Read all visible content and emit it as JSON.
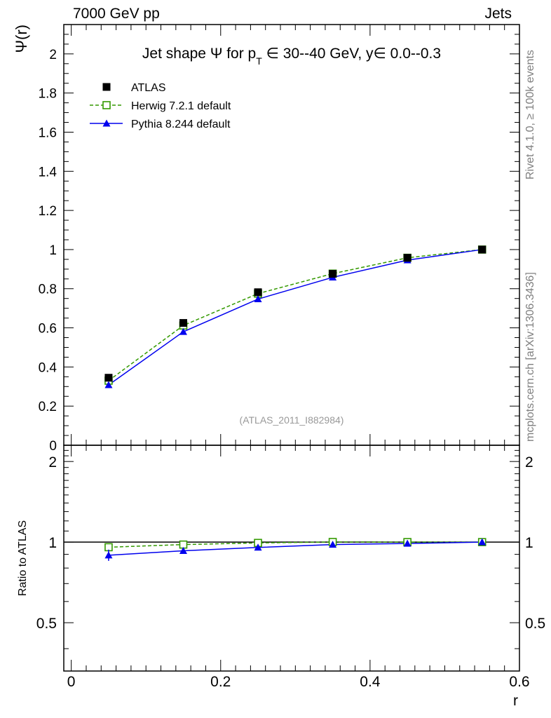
{
  "header": {
    "left_label": "7000 GeV pp",
    "right_label": "Jets"
  },
  "side_labels": {
    "rivet": "Rivet 4.1.0, ≥ 100k events",
    "mcplots": "mcplots.cern.ch [arXiv:1306.3436]"
  },
  "colors": {
    "atlas": "#000000",
    "herwig": "#339900",
    "pythia": "#0000ee",
    "watermark": "#999999"
  },
  "chart_data": [
    {
      "type": "line",
      "title_parts": {
        "prefix": "Jet shape ",
        "psi": "Ψ",
        "mid": " for p",
        "sub": "T",
        "suffix": " ∈ 30--40 GeV, y∈ 0.0--0.3"
      },
      "ylabel": "Ψ(r)",
      "xlim": [
        -0.01,
        0.6
      ],
      "ylim": [
        0,
        2.15
      ],
      "yticks": [
        "0",
        "0.2",
        "0.4",
        "0.6",
        "0.8",
        "1",
        "1.2",
        "1.4",
        "1.6",
        "1.8",
        "2"
      ],
      "watermark": "(ATLAS_2011_I882984)",
      "x": [
        0.05,
        0.15,
        0.25,
        0.35,
        0.45,
        0.55
      ],
      "series": [
        {
          "name": "ATLAS",
          "marker": "square-filled",
          "line": "none",
          "values": [
            0.345,
            0.625,
            0.782,
            0.876,
            0.958,
            1.0
          ],
          "errors": [
            0.012,
            0.012,
            0.01,
            0.008,
            0.006,
            0.0
          ]
        },
        {
          "name": "Herwig 7.2.1 default",
          "marker": "square-open",
          "line": "dashed",
          "values": [
            0.33,
            0.612,
            0.775,
            0.877,
            0.958,
            1.0
          ]
        },
        {
          "name": "Pythia 8.244 default",
          "marker": "triangle",
          "line": "solid",
          "values": [
            0.308,
            0.58,
            0.747,
            0.858,
            0.946,
            1.0
          ]
        }
      ],
      "legend_position": "top-left"
    },
    {
      "type": "line",
      "ylabel": "Ratio to ATLAS",
      "xlabel": "r",
      "xlim": [
        -0.01,
        0.6
      ],
      "ylim": [
        0.33,
        2.3
      ],
      "yticks": [
        "0.5",
        "1",
        "2"
      ],
      "xticks": [
        "0",
        "0.2",
        "0.4",
        "0.6"
      ],
      "x": [
        0.05,
        0.15,
        0.25,
        0.35,
        0.45,
        0.55
      ],
      "series": [
        {
          "name": "Herwig 7.2.1 default",
          "values": [
            0.957,
            0.979,
            0.993,
            1.001,
            1.0,
            1.0
          ]
        },
        {
          "name": "Pythia 8.244 default",
          "values": [
            0.893,
            0.928,
            0.955,
            0.979,
            0.988,
            1.0
          ]
        }
      ]
    }
  ]
}
